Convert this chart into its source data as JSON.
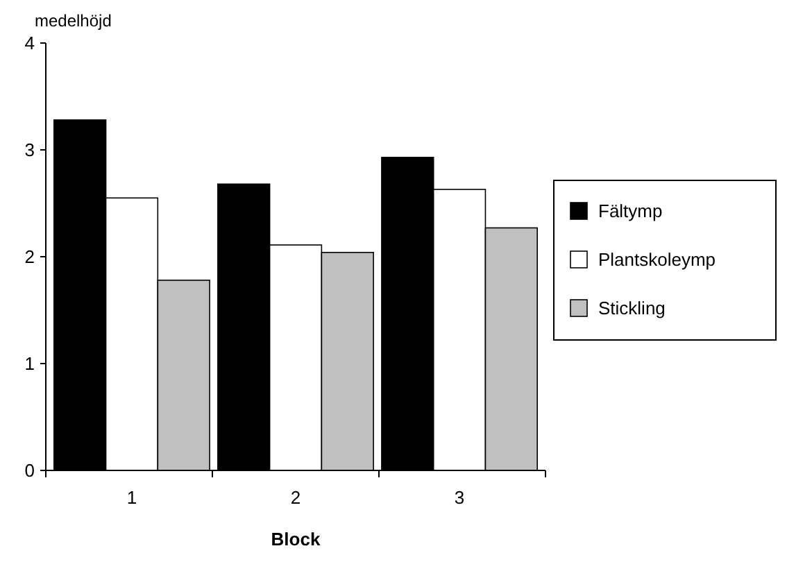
{
  "chart_data": {
    "type": "bar",
    "xlabel": "Block",
    "ylabel": "medelhöjd",
    "categories": [
      "1",
      "2",
      "3"
    ],
    "series": [
      {
        "name": "Fältymp",
        "color": "#000000",
        "values": [
          3.28,
          2.68,
          2.93
        ]
      },
      {
        "name": "Plantskoleymp",
        "color": "#ffffff",
        "values": [
          2.55,
          2.11,
          2.63
        ]
      },
      {
        "name": "Stickling",
        "color": "#c0c0c0",
        "values": [
          1.78,
          2.04,
          2.27
        ]
      }
    ],
    "ylim": [
      0,
      4
    ],
    "yticks": [
      0,
      1,
      2,
      3,
      4
    ],
    "grid": false,
    "legend": "right"
  }
}
